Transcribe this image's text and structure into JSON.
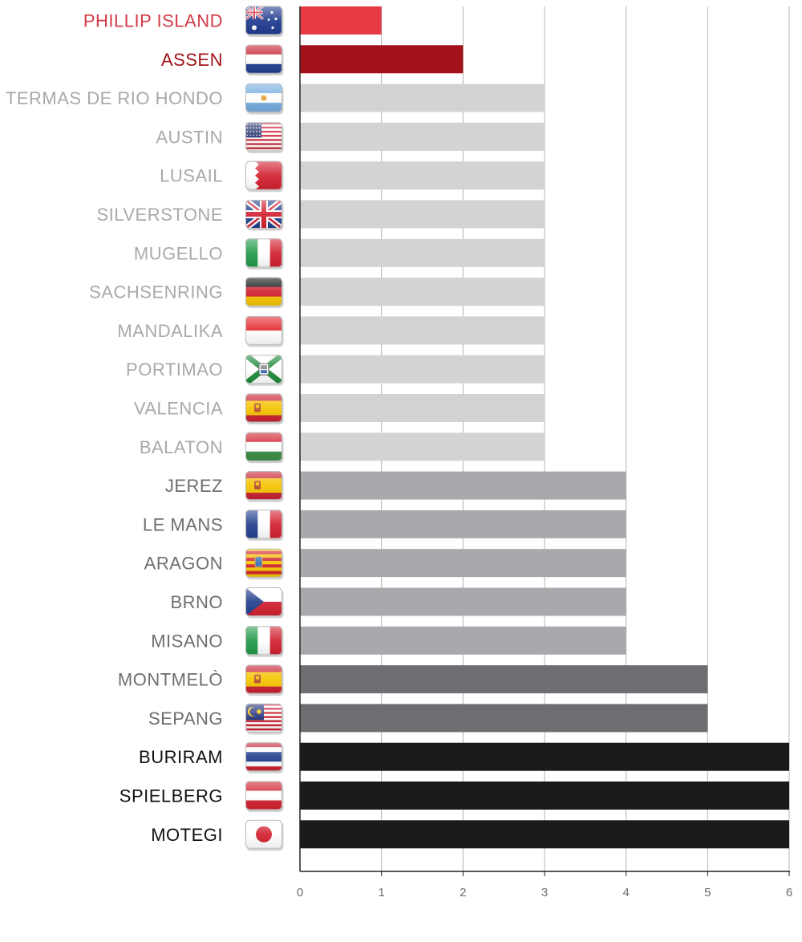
{
  "chart_data": {
    "type": "bar",
    "orientation": "horizontal",
    "xlim": [
      0,
      6
    ],
    "x_ticks": [
      "0",
      "1",
      "2",
      "3",
      "4",
      "5",
      "6"
    ],
    "grid": true,
    "colors": {
      "1": "#e63a45",
      "2": "#a3111a",
      "3": "#d1d3d4",
      "4": "#a7a9ac",
      "5": "#6d6e71",
      "6": "#1a1a1a",
      "label_red": "#d43a48",
      "label_darkred": "#a3111a",
      "label_light": "#a7a9ac",
      "label_mid": "#6d6e71",
      "label_dark": "#111111",
      "grid": "#b5b5b5",
      "axis": "#222222"
    },
    "categories": [
      {
        "name": "PHILLIP ISLAND",
        "value": 1,
        "flag": "australia-flag-icon",
        "label_color": "label_red"
      },
      {
        "name": "ASSEN",
        "value": 2,
        "flag": "netherlands-flag-icon",
        "label_color": "label_darkred"
      },
      {
        "name": "TERMAS DE RIO HONDO",
        "value": 3,
        "flag": "argentina-flag-icon",
        "label_color": "label_light"
      },
      {
        "name": "AUSTIN",
        "value": 3,
        "flag": "usa-flag-icon",
        "label_color": "label_light"
      },
      {
        "name": "LUSAIL",
        "value": 3,
        "flag": "bahrain-flag-icon",
        "label_color": "label_light"
      },
      {
        "name": "SILVERSTONE",
        "value": 3,
        "flag": "uk-flag-icon",
        "label_color": "label_light"
      },
      {
        "name": "MUGELLO",
        "value": 3,
        "flag": "italy-flag-icon",
        "label_color": "label_light"
      },
      {
        "name": "SACHSENRING",
        "value": 3,
        "flag": "germany-flag-icon",
        "label_color": "label_light"
      },
      {
        "name": "MANDALIKA",
        "value": 3,
        "flag": "indonesia-flag-icon",
        "label_color": "label_light"
      },
      {
        "name": "PORTIMAO",
        "value": 3,
        "flag": "portimao-flag-icon",
        "label_color": "label_light"
      },
      {
        "name": "VALENCIA",
        "value": 3,
        "flag": "spain-flag-icon",
        "label_color": "label_light"
      },
      {
        "name": "BALATON",
        "value": 3,
        "flag": "hungary-flag-icon",
        "label_color": "label_light"
      },
      {
        "name": "JEREZ",
        "value": 4,
        "flag": "spain-flag-icon",
        "label_color": "label_mid"
      },
      {
        "name": "LE MANS",
        "value": 4,
        "flag": "france-flag-icon",
        "label_color": "label_mid"
      },
      {
        "name": "ARAGON",
        "value": 4,
        "flag": "aragon-flag-icon",
        "label_color": "label_mid"
      },
      {
        "name": "BRNO",
        "value": 4,
        "flag": "czech-flag-icon",
        "label_color": "label_mid"
      },
      {
        "name": "MISANO",
        "value": 4,
        "flag": "italy-flag-icon",
        "label_color": "label_mid"
      },
      {
        "name": "MONTMELÒ",
        "value": 5,
        "flag": "spain-flag-icon",
        "label_color": "label_mid"
      },
      {
        "name": "SEPANG",
        "value": 5,
        "flag": "malaysia-flag-icon",
        "label_color": "label_mid"
      },
      {
        "name": "BURIRAM",
        "value": 6,
        "flag": "thailand-flag-icon",
        "label_color": "label_dark"
      },
      {
        "name": "SPIELBERG",
        "value": 6,
        "flag": "austria-flag-icon",
        "label_color": "label_dark"
      },
      {
        "name": "MOTEGI",
        "value": 6,
        "flag": "japan-flag-icon",
        "label_color": "label_dark"
      }
    ]
  }
}
